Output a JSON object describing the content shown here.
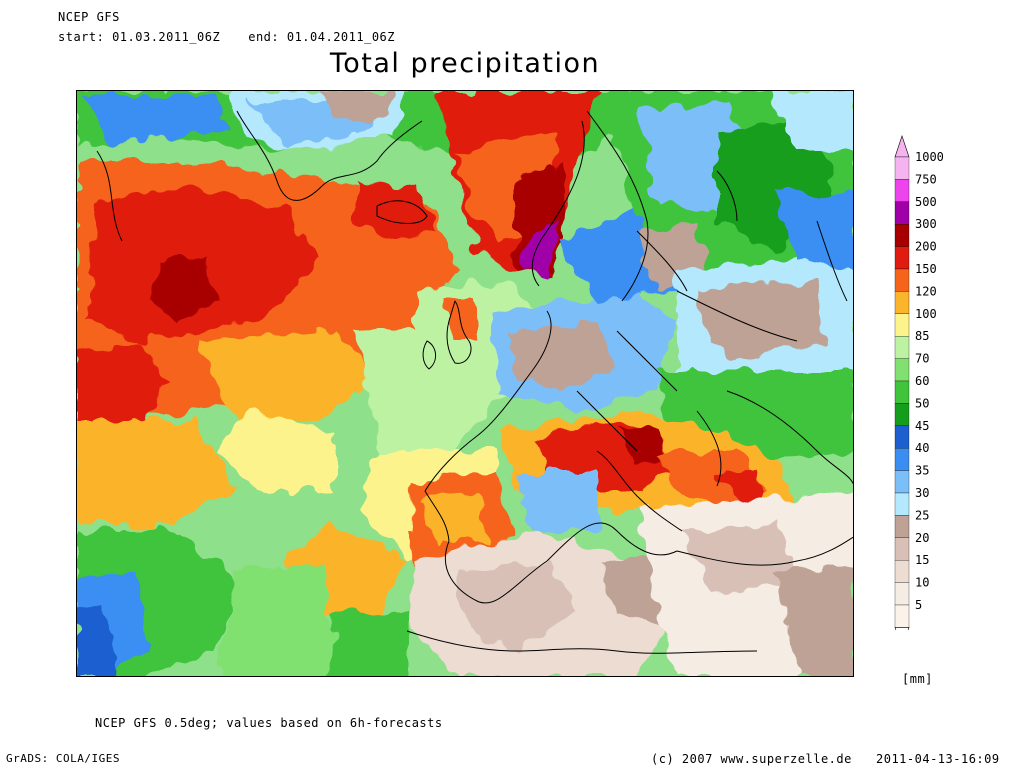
{
  "header": {
    "model": "NCEP GFS",
    "start": "start: 01.03.2011_06Z",
    "end": "end: 01.04.2011_06Z",
    "title": "Total precipitation"
  },
  "legend": {
    "unit": "[mm]",
    "levels": [
      {
        "label": "1000",
        "color": "#f5b4f0"
      },
      {
        "label": "750",
        "color": "#ee44ee"
      },
      {
        "label": "500",
        "color": "#a000a8"
      },
      {
        "label": "300",
        "color": "#a80000"
      },
      {
        "label": "200",
        "color": "#e01c10"
      },
      {
        "label": "150",
        "color": "#f5641a"
      },
      {
        "label": "120",
        "color": "#fbb42c"
      },
      {
        "label": "100",
        "color": "#fdf38c"
      },
      {
        "label": "85",
        "color": "#bdf2a2"
      },
      {
        "label": "70",
        "color": "#80e070"
      },
      {
        "label": "60",
        "color": "#3fc43c"
      },
      {
        "label": "50",
        "color": "#159e1c"
      },
      {
        "label": "45",
        "color": "#1e5fd0"
      },
      {
        "label": "40",
        "color": "#3a8ef2"
      },
      {
        "label": "35",
        "color": "#7cbef8"
      },
      {
        "label": "30",
        "color": "#b4e8fc"
      },
      {
        "label": "25",
        "color": "#bea296"
      },
      {
        "label": "20",
        "color": "#d8c0b6"
      },
      {
        "label": "15",
        "color": "#ecdcd2"
      },
      {
        "label": "10",
        "color": "#f5ece4"
      },
      {
        "label": "5",
        "color": "#fbf3ea"
      }
    ]
  },
  "footer": {
    "source_note": "NCEP GFS 0.5deg; values based on 6h-forecasts",
    "software": "GrADS: COLA/IGES",
    "copyright": "(c) 2007 www.superzelle.de",
    "timestamp": "2011-04-13-16:09"
  }
}
